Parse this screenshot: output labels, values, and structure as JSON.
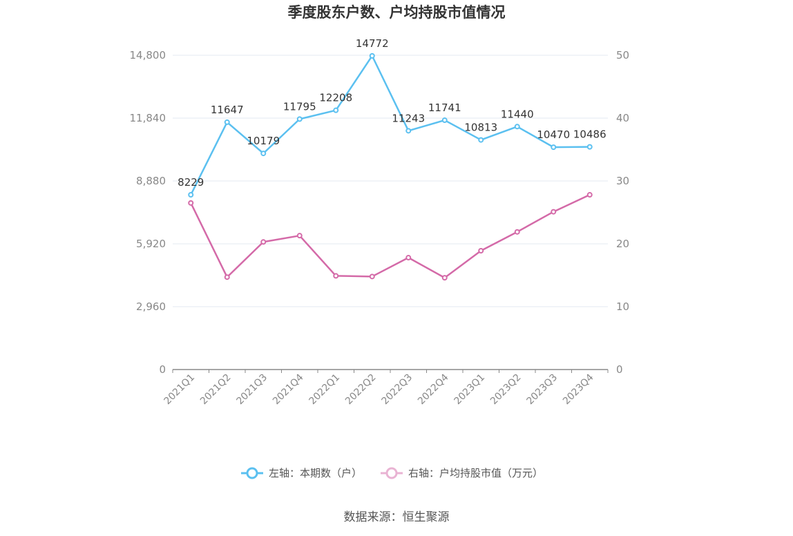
{
  "chart_data": {
    "type": "line",
    "title": "季度股东户数、户均持股市值情况",
    "categories": [
      "2021Q1",
      "2021Q2",
      "2021Q3",
      "2021Q4",
      "2022Q1",
      "2022Q2",
      "2022Q3",
      "2022Q4",
      "2023Q1",
      "2023Q2",
      "2023Q3",
      "2023Q4"
    ],
    "left_axis": {
      "ylim": [
        0,
        14800
      ],
      "ticks": [
        "0",
        "2,960",
        "5,920",
        "8,880",
        "11,840",
        "14,800"
      ]
    },
    "right_axis": {
      "ylim": [
        0,
        50
      ],
      "ticks": [
        "0",
        "10",
        "20",
        "30",
        "40",
        "50"
      ]
    },
    "series": [
      {
        "name": "左轴：本期数（户）",
        "axis": "left",
        "color": "#5bc0f0",
        "values": [
          8229,
          11647,
          10179,
          11795,
          12208,
          14772,
          11243,
          11741,
          10813,
          11440,
          10470,
          10486
        ],
        "labels": [
          "8229",
          "11647",
          "10179",
          "11795",
          "12208",
          "14772",
          "11243",
          "11741",
          "10813",
          "11440",
          "10470",
          "10486"
        ]
      },
      {
        "name": "右轴：户均持股市值（万元）",
        "axis": "right",
        "color": "#d46aa8",
        "values": [
          26.5,
          14.7,
          20.3,
          21.3,
          14.9,
          14.8,
          17.8,
          14.6,
          18.9,
          21.9,
          25.1,
          27.8
        ]
      }
    ],
    "grid": true,
    "legend_position": "bottom"
  },
  "legend_colors": {
    "left_series_fill": "#ffffff",
    "right_series_faded": "#e9b3d3"
  },
  "source": "数据来源：恒生聚源"
}
